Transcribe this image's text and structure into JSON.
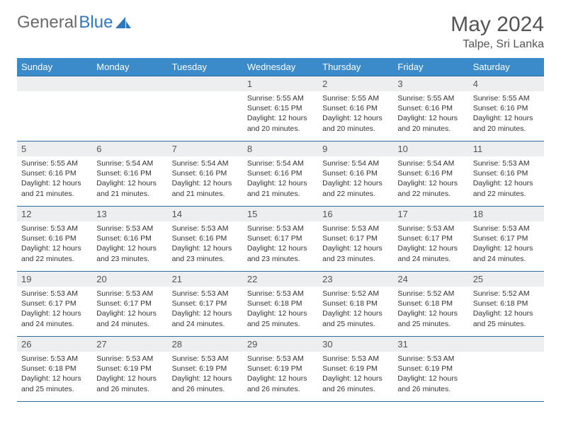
{
  "brand": {
    "part1": "General",
    "part2": "Blue"
  },
  "title": {
    "month": "May 2024",
    "location": "Talpe, Sri Lanka"
  },
  "colors": {
    "header_bg": "#3b8aca",
    "header_text": "#ffffff",
    "row_border": "#2c6aa0",
    "daynum_bg": "#eceeef",
    "text": "#333333",
    "logo_gray": "#6a6a6a",
    "logo_blue": "#2f78bd"
  },
  "weekdays": [
    "Sunday",
    "Monday",
    "Tuesday",
    "Wednesday",
    "Thursday",
    "Friday",
    "Saturday"
  ],
  "layout": {
    "first_weekday_index": 3,
    "days_in_month": 31,
    "rows": 5,
    "cols": 7
  },
  "days": {
    "1": {
      "sunrise": "5:55 AM",
      "sunset": "6:15 PM",
      "daylight": "12 hours and 20 minutes."
    },
    "2": {
      "sunrise": "5:55 AM",
      "sunset": "6:16 PM",
      "daylight": "12 hours and 20 minutes."
    },
    "3": {
      "sunrise": "5:55 AM",
      "sunset": "6:16 PM",
      "daylight": "12 hours and 20 minutes."
    },
    "4": {
      "sunrise": "5:55 AM",
      "sunset": "6:16 PM",
      "daylight": "12 hours and 20 minutes."
    },
    "5": {
      "sunrise": "5:55 AM",
      "sunset": "6:16 PM",
      "daylight": "12 hours and 21 minutes."
    },
    "6": {
      "sunrise": "5:54 AM",
      "sunset": "6:16 PM",
      "daylight": "12 hours and 21 minutes."
    },
    "7": {
      "sunrise": "5:54 AM",
      "sunset": "6:16 PM",
      "daylight": "12 hours and 21 minutes."
    },
    "8": {
      "sunrise": "5:54 AM",
      "sunset": "6:16 PM",
      "daylight": "12 hours and 21 minutes."
    },
    "9": {
      "sunrise": "5:54 AM",
      "sunset": "6:16 PM",
      "daylight": "12 hours and 22 minutes."
    },
    "10": {
      "sunrise": "5:54 AM",
      "sunset": "6:16 PM",
      "daylight": "12 hours and 22 minutes."
    },
    "11": {
      "sunrise": "5:53 AM",
      "sunset": "6:16 PM",
      "daylight": "12 hours and 22 minutes."
    },
    "12": {
      "sunrise": "5:53 AM",
      "sunset": "6:16 PM",
      "daylight": "12 hours and 22 minutes."
    },
    "13": {
      "sunrise": "5:53 AM",
      "sunset": "6:16 PM",
      "daylight": "12 hours and 23 minutes."
    },
    "14": {
      "sunrise": "5:53 AM",
      "sunset": "6:16 PM",
      "daylight": "12 hours and 23 minutes."
    },
    "15": {
      "sunrise": "5:53 AM",
      "sunset": "6:17 PM",
      "daylight": "12 hours and 23 minutes."
    },
    "16": {
      "sunrise": "5:53 AM",
      "sunset": "6:17 PM",
      "daylight": "12 hours and 23 minutes."
    },
    "17": {
      "sunrise": "5:53 AM",
      "sunset": "6:17 PM",
      "daylight": "12 hours and 24 minutes."
    },
    "18": {
      "sunrise": "5:53 AM",
      "sunset": "6:17 PM",
      "daylight": "12 hours and 24 minutes."
    },
    "19": {
      "sunrise": "5:53 AM",
      "sunset": "6:17 PM",
      "daylight": "12 hours and 24 minutes."
    },
    "20": {
      "sunrise": "5:53 AM",
      "sunset": "6:17 PM",
      "daylight": "12 hours and 24 minutes."
    },
    "21": {
      "sunrise": "5:53 AM",
      "sunset": "6:17 PM",
      "daylight": "12 hours and 24 minutes."
    },
    "22": {
      "sunrise": "5:53 AM",
      "sunset": "6:18 PM",
      "daylight": "12 hours and 25 minutes."
    },
    "23": {
      "sunrise": "5:52 AM",
      "sunset": "6:18 PM",
      "daylight": "12 hours and 25 minutes."
    },
    "24": {
      "sunrise": "5:52 AM",
      "sunset": "6:18 PM",
      "daylight": "12 hours and 25 minutes."
    },
    "25": {
      "sunrise": "5:52 AM",
      "sunset": "6:18 PM",
      "daylight": "12 hours and 25 minutes."
    },
    "26": {
      "sunrise": "5:53 AM",
      "sunset": "6:18 PM",
      "daylight": "12 hours and 25 minutes."
    },
    "27": {
      "sunrise": "5:53 AM",
      "sunset": "6:19 PM",
      "daylight": "12 hours and 26 minutes."
    },
    "28": {
      "sunrise": "5:53 AM",
      "sunset": "6:19 PM",
      "daylight": "12 hours and 26 minutes."
    },
    "29": {
      "sunrise": "5:53 AM",
      "sunset": "6:19 PM",
      "daylight": "12 hours and 26 minutes."
    },
    "30": {
      "sunrise": "5:53 AM",
      "sunset": "6:19 PM",
      "daylight": "12 hours and 26 minutes."
    },
    "31": {
      "sunrise": "5:53 AM",
      "sunset": "6:19 PM",
      "daylight": "12 hours and 26 minutes."
    }
  },
  "labels": {
    "sunrise_prefix": "Sunrise: ",
    "sunset_prefix": "Sunset: ",
    "daylight_prefix": "Daylight: "
  }
}
